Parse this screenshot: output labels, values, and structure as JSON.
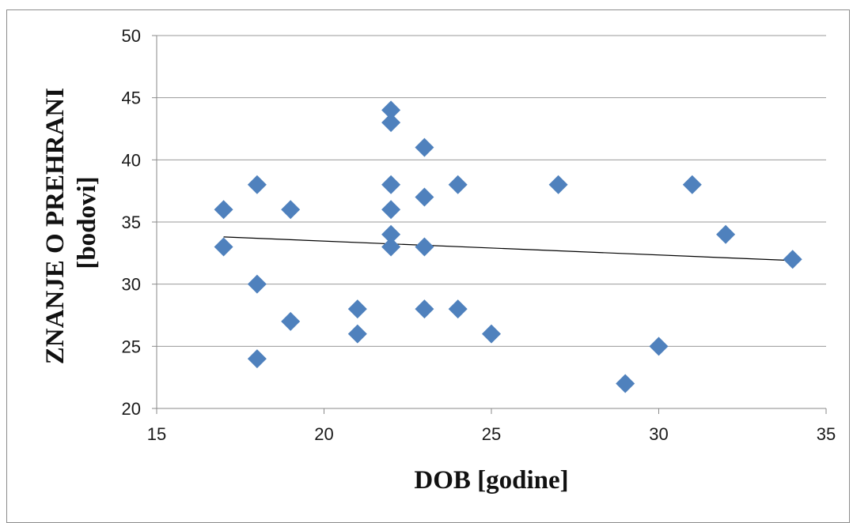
{
  "chart_data": {
    "type": "scatter",
    "xlabel": "DOB [godine]",
    "ylabel_line1": "ZNANJE O PREHRANI",
    "ylabel_line2": "[bodovi]",
    "xlim": [
      15,
      35
    ],
    "ylim": [
      20,
      50
    ],
    "x_ticks": [
      "15",
      "20",
      "25",
      "30",
      "35"
    ],
    "y_ticks": [
      "20",
      "25",
      "30",
      "35",
      "40",
      "45",
      "50"
    ],
    "grid": "horizontal",
    "marker_color": "#4f81bd",
    "points": [
      {
        "x": 17,
        "y": 36
      },
      {
        "x": 17,
        "y": 33
      },
      {
        "x": 18,
        "y": 38
      },
      {
        "x": 18,
        "y": 30
      },
      {
        "x": 18,
        "y": 24
      },
      {
        "x": 19,
        "y": 36
      },
      {
        "x": 19,
        "y": 27
      },
      {
        "x": 21,
        "y": 28
      },
      {
        "x": 21,
        "y": 26
      },
      {
        "x": 22,
        "y": 44
      },
      {
        "x": 22,
        "y": 43
      },
      {
        "x": 22,
        "y": 38
      },
      {
        "x": 22,
        "y": 36
      },
      {
        "x": 22,
        "y": 34
      },
      {
        "x": 22,
        "y": 33
      },
      {
        "x": 23,
        "y": 41
      },
      {
        "x": 23,
        "y": 37
      },
      {
        "x": 23,
        "y": 33
      },
      {
        "x": 23,
        "y": 28
      },
      {
        "x": 24,
        "y": 38
      },
      {
        "x": 24,
        "y": 28
      },
      {
        "x": 25,
        "y": 26
      },
      {
        "x": 27,
        "y": 38
      },
      {
        "x": 29,
        "y": 22
      },
      {
        "x": 30,
        "y": 25
      },
      {
        "x": 31,
        "y": 38
      },
      {
        "x": 32,
        "y": 34
      },
      {
        "x": 34,
        "y": 32
      }
    ],
    "trendline": {
      "x": [
        17,
        34
      ],
      "y": [
        33.8,
        31.9
      ]
    }
  }
}
